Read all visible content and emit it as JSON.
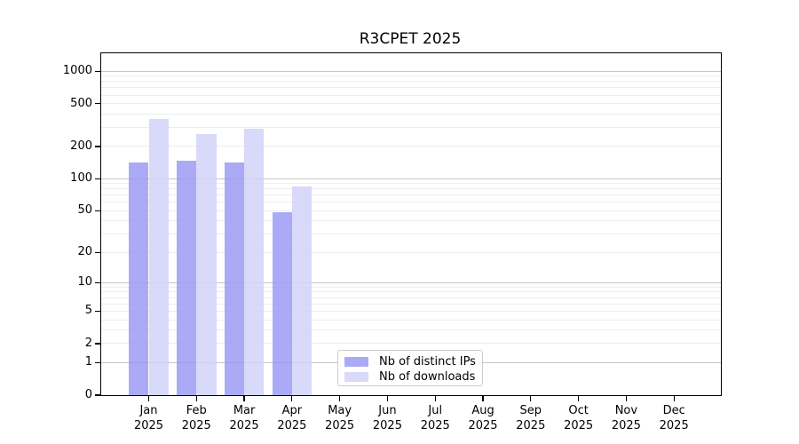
{
  "chart_data": {
    "type": "bar",
    "title": "R3CPET 2025",
    "categories": [
      "Jan",
      "Feb",
      "Mar",
      "Apr",
      "May",
      "Jun",
      "Jul",
      "Aug",
      "Sep",
      "Oct",
      "Nov",
      "Dec"
    ],
    "year_label": "2025",
    "series": [
      {
        "name": "Nb of distinct IPs",
        "color": "#aaaaf6",
        "fill": "rgba(149,149,244,0.8)",
        "values": [
          142,
          148,
          141,
          48,
          null,
          null,
          null,
          null,
          null,
          null,
          null,
          null
        ]
      },
      {
        "name": "Nb of downloads",
        "color": "#d9d9f9",
        "fill": "rgba(208,208,248,0.8)",
        "values": [
          362,
          262,
          292,
          84,
          null,
          null,
          null,
          null,
          null,
          null,
          null,
          null
        ]
      }
    ],
    "xlabel": "",
    "ylabel": "",
    "yticks": [
      0,
      1,
      2,
      5,
      10,
      20,
      50,
      100,
      200,
      500,
      1000
    ],
    "major_grid_ticks": [
      1,
      10,
      100,
      1000
    ],
    "scale": "log10(1+x)",
    "ylim": [
      0,
      1440
    ],
    "grid": true,
    "legend_position": "bottom-center",
    "axis_color": "#000000",
    "major_grid_color": "#c6c6c6",
    "minor_grid_color": "#ededed"
  }
}
